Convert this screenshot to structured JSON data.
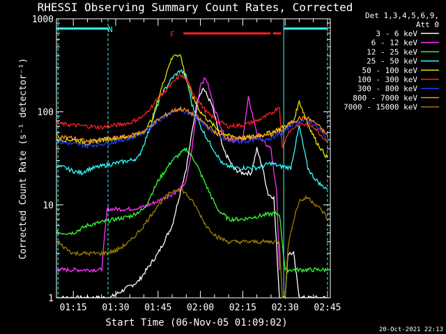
{
  "chart_data": {
    "type": "line",
    "title": "RHESSI Observing Summary Count Rates, Corrected",
    "xlabel": "Start Time (06-Nov-05 01:09:02)",
    "ylabel": "Corrected Count Rate (s⁻¹ detector⁻¹)",
    "yscale": "log",
    "ylim": [
      1,
      1000
    ],
    "xlim_min": [
      9.03,
      46.0
    ],
    "x_ticks": [
      {
        "label": "01:15",
        "value": 15
      },
      {
        "label": "01:30",
        "value": 30
      },
      {
        "label": "01:45",
        "value": 45
      },
      {
        "label": "02:00",
        "value": 60
      },
      {
        "label": "02:15",
        "value": 75
      },
      {
        "label": "02:30",
        "value": 90
      },
      {
        "label": "02:45",
        "value": 105
      }
    ],
    "y_ticks": [
      {
        "label": "1",
        "value": 1
      },
      {
        "label": "10",
        "value": 10
      },
      {
        "label": "100",
        "value": 100
      },
      {
        "label": "1000",
        "value": 1000
      }
    ],
    "legend_header": [
      "Det 1,3,4,5,6,9,",
      "Att 0"
    ],
    "annotations": {
      "night_label": "N",
      "flare_label": "F",
      "date_stamp": "20-Oct-2021 22:13"
    },
    "series": [
      {
        "name": "3 - 6 keV",
        "color": "#ffffff",
        "x": [
          9,
          25,
          28,
          38,
          45,
          50,
          55,
          59,
          61,
          64,
          68,
          72,
          75,
          78,
          80,
          82,
          84,
          86,
          88,
          90,
          91,
          93,
          95,
          98,
          100,
          105
        ],
        "values": [
          1,
          1,
          1,
          1.5,
          3,
          6,
          25,
          140,
          180,
          120,
          40,
          24,
          22,
          22,
          40,
          25,
          13,
          12,
          1,
          1,
          3,
          3,
          1,
          1,
          1,
          1
        ]
      },
      {
        "name": "6 - 12 keV",
        "color": "#ff33ff",
        "x": [
          9,
          25,
          27,
          30,
          35,
          40,
          45,
          50,
          53,
          55,
          57,
          59,
          60,
          62,
          65,
          68,
          72,
          75,
          77,
          80,
          83,
          85,
          86,
          87,
          88
        ],
        "values": [
          2,
          2,
          9,
          9,
          9,
          9.5,
          11,
          13,
          15,
          18,
          40,
          120,
          200,
          230,
          110,
          60,
          48,
          52,
          140,
          60,
          45,
          40,
          22,
          14,
          2
        ]
      },
      {
        "name": "12 - 25 keV",
        "color": "#33ff33",
        "x": [
          9,
          15,
          20,
          25,
          30,
          35,
          40,
          45,
          50,
          55,
          58,
          60,
          63,
          66,
          70,
          75,
          80,
          85,
          88,
          90,
          95,
          100,
          105
        ],
        "values": [
          5,
          5,
          6,
          6.5,
          7,
          7.5,
          9,
          18,
          30,
          40,
          30,
          22,
          14,
          9,
          7,
          7,
          7.5,
          8,
          8,
          2,
          2,
          2,
          2
        ]
      },
      {
        "name": "25 - 50 keV",
        "color": "#33ffff",
        "x": [
          9,
          12,
          15,
          18,
          20,
          25,
          30,
          35,
          38,
          40,
          43,
          46,
          50,
          53,
          55,
          57,
          60,
          63,
          66,
          68,
          72,
          75,
          80,
          85,
          88,
          92,
          95,
          98,
          100,
          103,
          105
        ],
        "values": [
          26,
          25,
          23,
          22,
          24,
          26,
          28,
          30,
          32,
          45,
          80,
          150,
          230,
          280,
          240,
          120,
          70,
          48,
          34,
          27,
          25,
          25,
          25,
          28,
          26,
          25,
          70,
          25,
          20,
          16,
          15
        ]
      },
      {
        "name": "50 - 100 keV",
        "color": "#e6e600",
        "x": [
          9,
          15,
          20,
          25,
          30,
          35,
          40,
          43,
          46,
          49,
          51,
          53,
          55,
          57,
          60,
          63,
          66,
          70,
          75,
          80,
          85,
          90,
          93,
          95,
          98,
          101,
          104,
          105
        ],
        "values": [
          50,
          50,
          46,
          50,
          52,
          54,
          60,
          85,
          170,
          330,
          420,
          400,
          220,
          150,
          100,
          80,
          65,
          55,
          52,
          55,
          60,
          70,
          80,
          130,
          75,
          48,
          35,
          32
        ]
      },
      {
        "name": "100 - 300 keV",
        "color": "#ff2020",
        "x": [
          9,
          15,
          20,
          25,
          30,
          35,
          40,
          45,
          50,
          53,
          55,
          58,
          62,
          66,
          70,
          75,
          80,
          85,
          88,
          89,
          91,
          95,
          100,
          103,
          105
        ],
        "values": [
          75,
          72,
          70,
          68,
          72,
          76,
          90,
          140,
          200,
          250,
          220,
          150,
          100,
          80,
          70,
          72,
          80,
          95,
          115,
          40,
          60,
          75,
          70,
          55,
          48
        ]
      },
      {
        "name": "300 - 800 keV",
        "color": "#2040ff",
        "x": [
          9,
          15,
          20,
          25,
          30,
          35,
          40,
          45,
          50,
          53,
          55,
          58,
          62,
          66,
          70,
          75,
          80,
          85,
          90,
          92,
          95,
          98,
          101,
          104,
          105
        ],
        "values": [
          48,
          45,
          43,
          45,
          48,
          52,
          60,
          80,
          100,
          105,
          100,
          90,
          70,
          55,
          48,
          48,
          50,
          52,
          62,
          72,
          80,
          80,
          70,
          55,
          50
        ]
      },
      {
        "name": "800 - 7000 keV",
        "color": "#ff9020",
        "x": [
          9,
          15,
          20,
          25,
          30,
          35,
          40,
          45,
          50,
          53,
          55,
          58,
          62,
          66,
          70,
          75,
          80,
          85,
          90,
          92,
          95,
          98,
          101,
          104,
          105
        ],
        "values": [
          55,
          52,
          48,
          50,
          52,
          55,
          62,
          82,
          102,
          108,
          103,
          92,
          73,
          58,
          52,
          52,
          54,
          57,
          66,
          76,
          85,
          85,
          75,
          60,
          55
        ]
      },
      {
        "name": "7000 - 15000 keV",
        "color": "#a08000",
        "x": [
          9,
          15,
          20,
          25,
          30,
          35,
          40,
          45,
          50,
          53,
          55,
          58,
          62,
          66,
          70,
          75,
          80,
          85,
          88,
          89,
          90,
          91,
          93,
          95,
          98,
          101,
          104,
          105
        ],
        "values": [
          4,
          3,
          3,
          3,
          3.2,
          4,
          6,
          10,
          14,
          15,
          13,
          10,
          6,
          4.5,
          4,
          4,
          4,
          4,
          4,
          1,
          1,
          3.5,
          7,
          11,
          12,
          10,
          8,
          7
        ]
      }
    ]
  }
}
